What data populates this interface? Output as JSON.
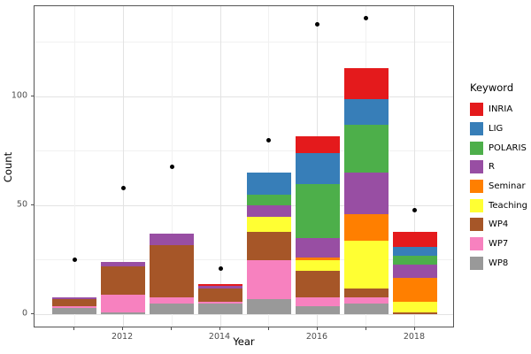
{
  "axes": {
    "x_label": "Year",
    "y_label": "Count",
    "y_tick_labels": [
      "0",
      "50",
      "100"
    ],
    "x_tick_labels": [
      "2012",
      "2014",
      "2016",
      "2018"
    ]
  },
  "legend": {
    "title": "Keyword"
  },
  "colors": {
    "background": "#ffffff",
    "panel_border": "#555555",
    "grid_major": "#e3e3e3",
    "grid_minor": "#f1f1f1",
    "axis_text": "#4d4d4d",
    "point": "#000000"
  },
  "chart_data": {
    "type": "bar",
    "stacked": true,
    "title": "",
    "xlabel": "Year",
    "ylabel": "Count",
    "x": [
      2011,
      2012,
      2013,
      2014,
      2015,
      2016,
      2017,
      2018
    ],
    "bar_width": 0.9,
    "series": [
      {
        "name": "INRIA",
        "color": "#E41A1C",
        "values": [
          0,
          0,
          0,
          1,
          0,
          8,
          14,
          7
        ]
      },
      {
        "name": "LIG",
        "color": "#377EB8",
        "values": [
          0,
          0,
          0,
          0,
          10,
          14,
          12,
          4
        ]
      },
      {
        "name": "POLARIS",
        "color": "#4DAF4A",
        "values": [
          0,
          0,
          0,
          0,
          5,
          25,
          22,
          4
        ]
      },
      {
        "name": "R",
        "color": "#984EA3",
        "values": [
          1,
          2,
          5,
          1,
          5,
          9,
          19,
          6
        ]
      },
      {
        "name": "Seminar",
        "color": "#FF7F00",
        "values": [
          0,
          0,
          0,
          0,
          0,
          1,
          12,
          11
        ]
      },
      {
        "name": "Teaching",
        "color": "#FFFF33",
        "values": [
          0,
          0,
          0,
          0,
          7,
          5,
          22,
          5
        ]
      },
      {
        "name": "WP4",
        "color": "#A65628",
        "values": [
          3,
          13,
          24,
          6,
          13,
          12,
          4,
          1
        ]
      },
      {
        "name": "WP7",
        "color": "#F781BF",
        "values": [
          1,
          8,
          3,
          1,
          18,
          4,
          3,
          0
        ]
      },
      {
        "name": "WP8",
        "color": "#999999",
        "values": [
          3,
          1,
          5,
          5,
          7,
          4,
          5,
          0
        ]
      }
    ],
    "bar_totals": [
      8,
      24,
      37,
      14,
      65,
      82,
      113,
      38
    ],
    "points": {
      "name": "count-points",
      "values": [
        25,
        58,
        68,
        21,
        80,
        133,
        136,
        48
      ]
    },
    "x_major_breaks": [
      2012,
      2014,
      2016,
      2018
    ],
    "x_minor_breaks": [
      2011,
      2013,
      2015,
      2017
    ],
    "x_tick_positions": [
      2011,
      2012,
      2013,
      2014,
      2015,
      2016,
      2017,
      2018
    ],
    "y_major_breaks": [
      0,
      50,
      100
    ],
    "y_minor_breaks": [
      25,
      75,
      125
    ],
    "xlim": [
      2010.18,
      2018.82
    ],
    "ylim": [
      -6.3,
      141.5
    ],
    "legend_position": "right",
    "grid": true
  }
}
